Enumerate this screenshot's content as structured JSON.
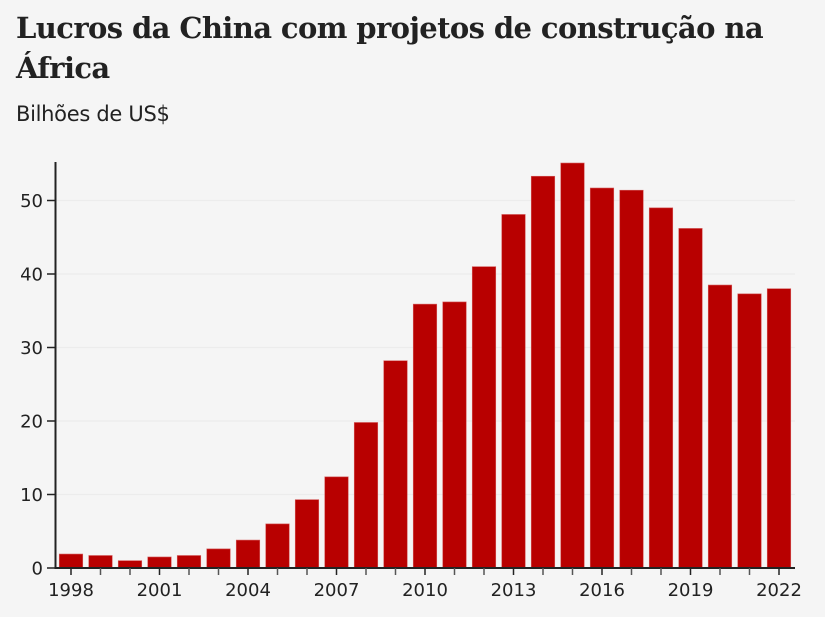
{
  "chart_data": {
    "type": "bar",
    "title": "Lucros da China com projetos de construção na África",
    "subtitle": "Bilhões de US$",
    "xlabel": "",
    "ylabel": "Bilhões de US$",
    "categories": [
      "1998",
      "1999",
      "2000",
      "2001",
      "2002",
      "2003",
      "2004",
      "2005",
      "2006",
      "2007",
      "2008",
      "2009",
      "2010",
      "2011",
      "2012",
      "2013",
      "2014",
      "2015",
      "2016",
      "2017",
      "2018",
      "2019",
      "2020",
      "2021",
      "2022"
    ],
    "values": [
      1.9,
      1.7,
      1.0,
      1.5,
      1.7,
      2.6,
      3.8,
      6.0,
      9.3,
      12.4,
      19.8,
      28.2,
      35.9,
      36.2,
      41.0,
      48.1,
      53.3,
      55.1,
      51.7,
      51.4,
      49.0,
      46.2,
      38.5,
      37.3,
      38.0
    ],
    "ylim": [
      0,
      55
    ],
    "yticks": [
      0,
      10,
      20,
      30,
      40,
      50
    ],
    "xtick_labels": [
      "1998",
      "2001",
      "2004",
      "2007",
      "2010",
      "2013",
      "2016",
      "2019",
      "2022"
    ],
    "grid": true,
    "legend": "none",
    "colors": {
      "bar": "#b80000",
      "axis": "#222222",
      "grid": "#ececec",
      "background": "#f5f5f5"
    }
  }
}
